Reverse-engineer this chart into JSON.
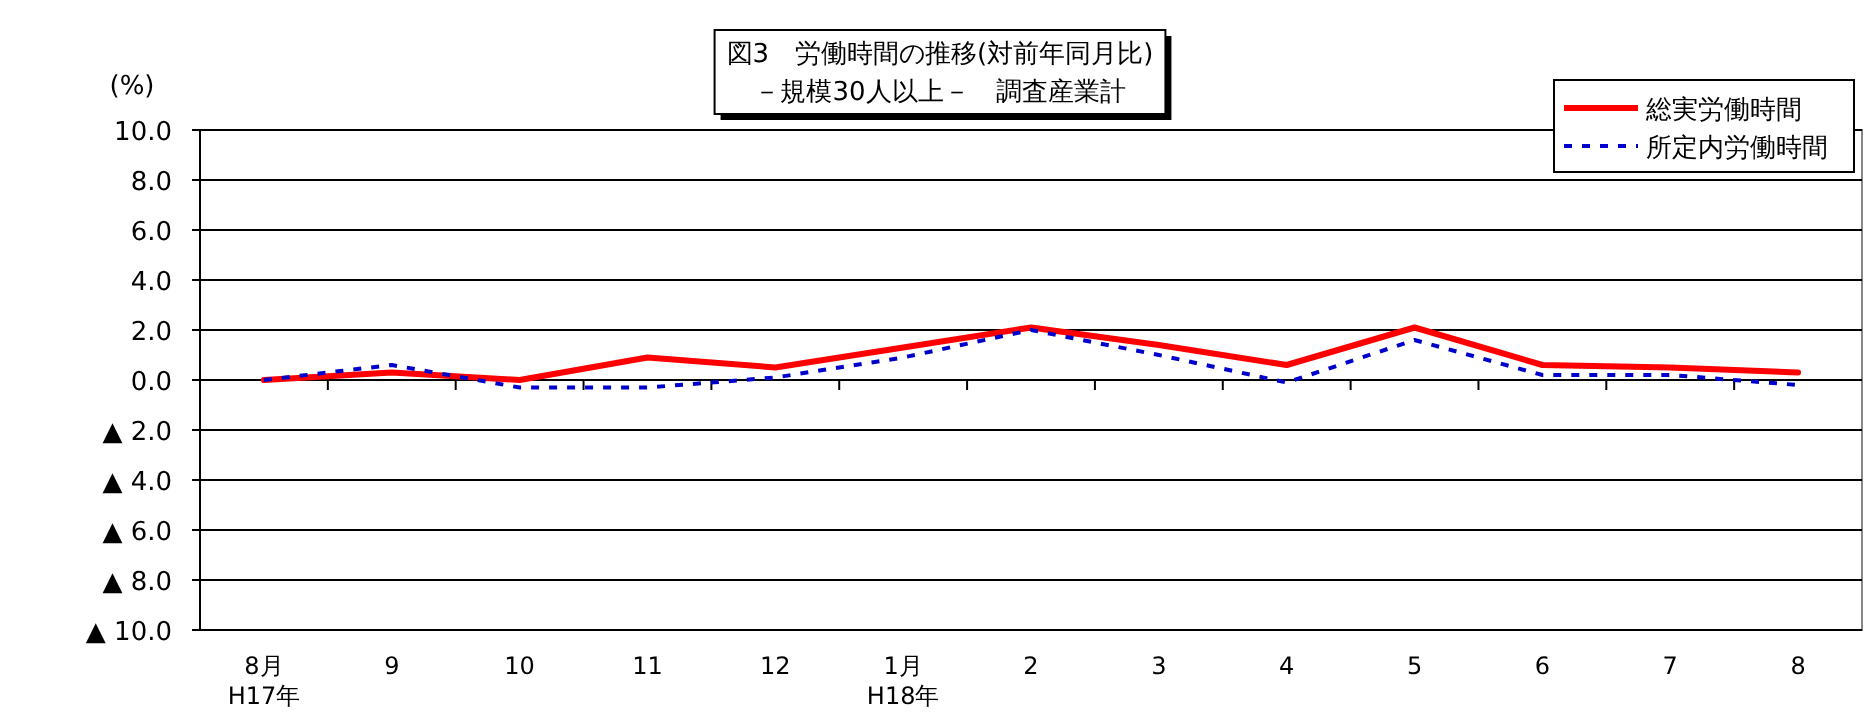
{
  "chart_data": {
    "type": "line",
    "title": "図3　労働時間の推移(対前年同月比)",
    "subtitle": "－規模30人以上－　調査産業計",
    "ylabel": "(%)",
    "categories": [
      "8月 H17年",
      "9",
      "10",
      "11",
      "12",
      "1月 H18年",
      "2",
      "3",
      "4",
      "5",
      "6",
      "7",
      "8"
    ],
    "series": [
      {
        "name": "総実労働時間",
        "color": "#ff0000",
        "line_style": "solid",
        "values": [
          0.0,
          0.3,
          0.0,
          0.9,
          0.5,
          1.3,
          2.1,
          1.4,
          0.6,
          2.1,
          0.6,
          0.5,
          0.3
        ]
      },
      {
        "name": "所定内労働時間",
        "color": "#0000cc",
        "line_style": "dashed",
        "values": [
          0.0,
          0.6,
          -0.3,
          -0.3,
          0.1,
          0.9,
          2.0,
          1.0,
          -0.1,
          1.6,
          0.2,
          0.2,
          -0.2
        ]
      }
    ],
    "ylim": [
      -10,
      10
    ],
    "yticks": [
      {
        "value": -10,
        "label": "▲ 10.0"
      },
      {
        "value": -8,
        "label": "▲ 8.0"
      },
      {
        "value": -6,
        "label": "▲ 6.0"
      },
      {
        "value": -4,
        "label": "▲ 4.0"
      },
      {
        "value": -2,
        "label": "▲ 2.0"
      },
      {
        "value": 0,
        "label": "0.0"
      },
      {
        "value": 2,
        "label": "2.0"
      },
      {
        "value": 4,
        "label": "4.0"
      },
      {
        "value": 6,
        "label": "6.0"
      },
      {
        "value": 8,
        "label": "8.0"
      },
      {
        "value": 10,
        "label": "10.0"
      }
    ],
    "grid": "y",
    "legend": "top right",
    "marker": "none"
  }
}
